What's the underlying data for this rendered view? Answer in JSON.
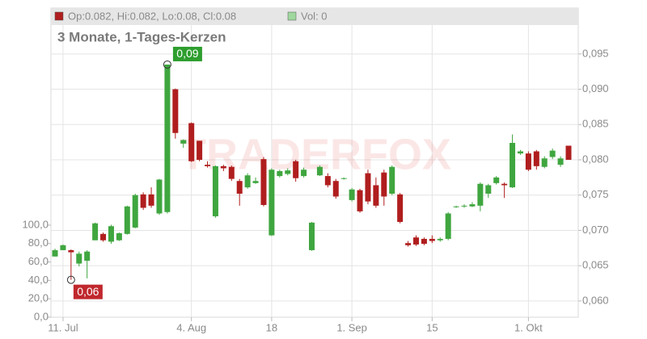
{
  "chart_data": {
    "type": "candlestick",
    "title": "3 Monate, 1-Tages-Kerzen",
    "header": {
      "ohlc": "Op:0.082, Hi:0.082, Lo:0.08, Cl:0.08",
      "volume": "Vol: 0"
    },
    "watermark": "TRADERFOX",
    "categories": [
      null,
      "11. Jul",
      null,
      null,
      null,
      null,
      null,
      null,
      null,
      null,
      null,
      null,
      null,
      null,
      null,
      null,
      null,
      "4. Aug",
      null,
      null,
      null,
      null,
      null,
      null,
      null,
      null,
      null,
      "18",
      null,
      null,
      null,
      null,
      null,
      null,
      null,
      null,
      null,
      "1. Sep",
      null,
      null,
      null,
      null,
      null,
      null,
      null,
      null,
      null,
      "15",
      null,
      null,
      null,
      null,
      null,
      null,
      null,
      null,
      null,
      null,
      null,
      "1. Okt",
      null,
      null,
      null,
      null,
      null
    ],
    "open": [
      0.0663,
      0.0672,
      0.0672,
      0.0653,
      0.0657,
      0.0686,
      0.0695,
      0.0684,
      0.0686,
      0.0695,
      0.0704,
      0.0751,
      0.0751,
      0.0724,
      0.0726,
      0.09,
      0.0823,
      0.0852,
      0.0827,
      0.0793,
      0.072,
      0.0791,
      0.079,
      0.077,
      0.0761,
      0.0767,
      0.0801,
      0.0693,
      0.0777,
      0.078,
      0.0798,
      0.0777,
      0.0672,
      0.0778,
      0.0777,
      0.077,
      0.0773,
      0.0743,
      0.0757,
      0.0781,
      0.0764,
      0.0782,
      0.0752,
      0.0751,
      0.0682,
      0.069,
      0.0688,
      0.0688,
      0.0686,
      0.0688,
      0.0733,
      0.0734,
      0.0734,
      0.0735,
      0.0752,
      0.0767,
      0.0766,
      0.0761,
      0.0809,
      0.0809,
      0.0812,
      0.079,
      0.0804,
      0.0793,
      0.082
    ],
    "high": [
      0.0674,
      0.068,
      0.0673,
      0.067,
      0.0672,
      0.0711,
      0.0697,
      0.0708,
      0.0697,
      0.0735,
      0.0752,
      0.0754,
      0.0761,
      0.0773,
      0.0935,
      0.0901,
      0.0829,
      0.0853,
      0.0827,
      0.0798,
      0.0792,
      0.0793,
      0.0792,
      0.0773,
      0.0781,
      0.0775,
      0.0804,
      0.0788,
      0.0786,
      0.0788,
      0.08,
      0.0789,
      0.0712,
      0.0792,
      0.0781,
      0.0773,
      0.0775,
      0.076,
      0.0759,
      0.0786,
      0.0775,
      0.0786,
      0.0792,
      0.0753,
      0.0685,
      0.0693,
      0.069,
      0.0693,
      0.069,
      0.0726,
      0.0735,
      0.0737,
      0.074,
      0.0768,
      0.0766,
      0.0777,
      0.0768,
      0.0836,
      0.0814,
      0.0812,
      0.0814,
      0.0805,
      0.0816,
      0.0805,
      0.082
    ],
    "low": [
      0.0663,
      0.0672,
      0.063,
      0.0649,
      0.0632,
      0.0686,
      0.0684,
      0.0681,
      0.0685,
      0.0694,
      0.0703,
      0.0729,
      0.0732,
      0.0722,
      0.0724,
      0.083,
      0.0817,
      0.0797,
      0.0798,
      0.0789,
      0.0718,
      0.0784,
      0.077,
      0.0735,
      0.0759,
      0.0766,
      0.0734,
      0.0692,
      0.0775,
      0.0778,
      0.0769,
      0.0775,
      0.0671,
      0.0777,
      0.0761,
      0.0745,
      0.0772,
      0.0741,
      0.0725,
      0.0737,
      0.0732,
      0.0735,
      0.075,
      0.071,
      0.0677,
      0.0678,
      0.0679,
      0.0682,
      0.0684,
      0.0686,
      0.0732,
      0.0732,
      0.0733,
      0.0727,
      0.0746,
      0.0765,
      0.0746,
      0.076,
      0.0807,
      0.0784,
      0.0786,
      0.0788,
      0.0801,
      0.079,
      0.08
    ],
    "close": [
      0.0672,
      0.0679,
      0.0669,
      0.0667,
      0.067,
      0.071,
      0.0686,
      0.0706,
      0.0696,
      0.0734,
      0.075,
      0.0732,
      0.0735,
      0.0772,
      0.0935,
      0.0838,
      0.0828,
      0.0798,
      0.08,
      0.0791,
      0.0791,
      0.0788,
      0.0773,
      0.0752,
      0.0778,
      0.077,
      0.0736,
      0.0786,
      0.0784,
      0.0785,
      0.0774,
      0.0786,
      0.0711,
      0.079,
      0.0764,
      0.0748,
      0.0774,
      0.0758,
      0.0727,
      0.0741,
      0.0735,
      0.0748,
      0.079,
      0.0712,
      0.0679,
      0.068,
      0.0681,
      0.0685,
      0.0688,
      0.0724,
      0.0734,
      0.0735,
      0.0737,
      0.0766,
      0.0764,
      0.0775,
      0.0764,
      0.0824,
      0.0812,
      0.0786,
      0.0791,
      0.0802,
      0.0813,
      0.0802,
      0.08
    ],
    "up_color": "#3fa63f",
    "down_color": "#b01e1e",
    "ylim": [
      0.0577,
      0.1015
    ],
    "yticks": [
      {
        "value": 0.06,
        "label": "0,060"
      },
      {
        "value": 0.065,
        "label": "0,065"
      },
      {
        "value": 0.07,
        "label": "0,070"
      },
      {
        "value": 0.075,
        "label": "0,075"
      },
      {
        "value": 0.08,
        "label": "0,080"
      },
      {
        "value": 0.085,
        "label": "0,085"
      },
      {
        "value": 0.09,
        "label": "0,090"
      },
      {
        "value": 0.095,
        "label": "0,095"
      }
    ],
    "y2lim": [
      0,
      336
    ],
    "y2ticks": [
      {
        "value": 0,
        "label": "0,0"
      },
      {
        "value": 20,
        "label": "20,0"
      },
      {
        "value": 40,
        "label": "40,0"
      },
      {
        "value": 60,
        "label": "60,0"
      },
      {
        "value": 80,
        "label": "80,0"
      },
      {
        "value": 100,
        "label": "100,0"
      }
    ],
    "max_label": "0,09",
    "min_label": "0,06",
    "grid": true
  }
}
